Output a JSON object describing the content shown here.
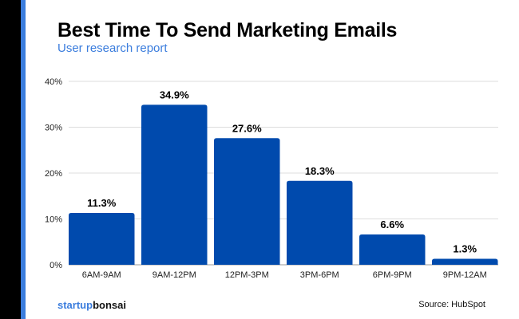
{
  "title": "Best Time To Send Marketing Emails",
  "subtitle": "User research report",
  "logo": {
    "part1": "startup",
    "part2": "bonsai"
  },
  "source": "Source: HubSpot",
  "colors": {
    "bar": "#004aad",
    "accent": "#3b7ddd"
  },
  "chart_data": {
    "type": "bar",
    "title": "Best Time To Send Marketing Emails",
    "subtitle": "User research report",
    "categories": [
      "6AM-9AM",
      "9AM-12PM",
      "12PM-3PM",
      "3PM-6PM",
      "6PM-9PM",
      "9PM-12AM"
    ],
    "values": [
      11.3,
      34.9,
      27.6,
      18.3,
      6.6,
      1.3
    ],
    "data_labels": [
      "11.3%",
      "34.9%",
      "27.6%",
      "18.3%",
      "6.6%",
      "1.3%"
    ],
    "yticks": [
      "0%",
      "10%",
      "20%",
      "30%",
      "40%"
    ],
    "ylim": [
      0,
      40
    ],
    "grid": true,
    "xlabel": "",
    "ylabel": ""
  }
}
